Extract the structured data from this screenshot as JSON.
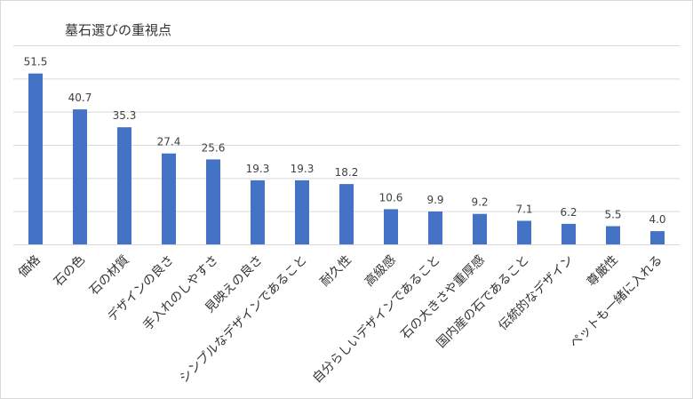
{
  "chart_data": {
    "type": "bar",
    "title": "墓石選びの重視点",
    "xlabel": "",
    "ylabel": "",
    "ylim": [
      0,
      60
    ],
    "grid": true,
    "categories": [
      "価格",
      "石の色",
      "石の材質",
      "デザインの良さ",
      "手入れのしやすさ",
      "見映えの良さ",
      "シンプルなデザインであること",
      "耐久性",
      "高級感",
      "自分らしいデザインであること",
      "石の大きさや重厚感",
      "国内産の石であること",
      "伝統的なデザイン",
      "尊厳性",
      "ペットも一緒に入れる"
    ],
    "values": [
      51.5,
      40.7,
      35.3,
      27.4,
      25.6,
      19.3,
      19.3,
      18.2,
      10.6,
      9.9,
      9.2,
      7.1,
      6.2,
      5.5,
      4.0
    ],
    "value_labels": [
      "51.5",
      "40.7",
      "35.3",
      "27.4",
      "25.6",
      "19.3",
      "19.3",
      "18.2",
      "10.6",
      "9.9",
      "9.2",
      "7.1",
      "6.2",
      "5.5",
      "4.0"
    ],
    "bar_color": "#4472c4",
    "grid_color": "#d9d9d9"
  }
}
